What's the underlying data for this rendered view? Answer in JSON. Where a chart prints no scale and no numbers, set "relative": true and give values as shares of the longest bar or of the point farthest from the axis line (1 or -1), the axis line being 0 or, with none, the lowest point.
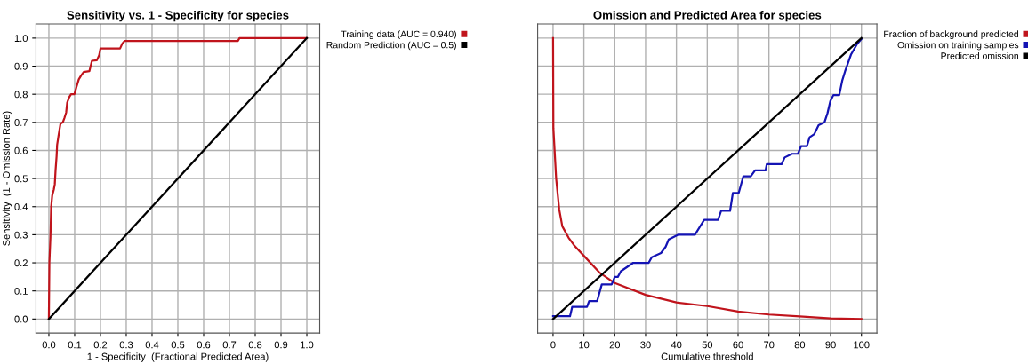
{
  "chart_data": [
    {
      "type": "line",
      "title": "Sensitivity vs. 1 - Specificity for species",
      "xlabel": "1 - Specificity  (Fractional Predicted Area)",
      "ylabel": "Sensitivity  (1 - Omission Rate)",
      "xlim": [
        -0.05,
        1.05
      ],
      "ylim": [
        -0.05,
        1.05
      ],
      "xticks": [
        {
          "value": 0,
          "label": "0.0"
        },
        0.1,
        0.2,
        0.3,
        0.4,
        0.5,
        0.6,
        0.7,
        0.8,
        0.9,
        {
          "value": 1,
          "label": "1.0"
        }
      ],
      "yticks": [
        {
          "value": 0,
          "label": "0.0"
        },
        0.1,
        0.2,
        0.3,
        0.4,
        0.5,
        0.6,
        0.7,
        0.8,
        0.9,
        {
          "value": 1,
          "label": "1.0"
        }
      ],
      "grid": true,
      "legend": "top right",
      "marker": "none",
      "line_style": "solid",
      "series": [
        {
          "name": "Training data (AUC = 0.940)",
          "color": "#c0141c",
          "x": [
            0,
            0.002,
            0.006,
            0.009,
            0.013,
            0.019,
            0.023,
            0.026,
            0.03,
            0.032,
            0.037,
            0.045,
            0.054,
            0.06,
            0.067,
            0.071,
            0.079,
            0.086,
            0.099,
            0.107,
            0.116,
            0.126,
            0.135,
            0.157,
            0.167,
            0.186,
            0.195,
            0.2,
            0.276,
            0.285,
            0.294,
            0.733,
            0.739,
            1.0
          ],
          "values": [
            0,
            0.2,
            0.29,
            0.4,
            0.44,
            0.46,
            0.48,
            0.53,
            0.58,
            0.62,
            0.65,
            0.695,
            0.7,
            0.715,
            0.735,
            0.77,
            0.79,
            0.8,
            0.8,
            0.826,
            0.853,
            0.868,
            0.879,
            0.882,
            0.919,
            0.921,
            0.939,
            0.963,
            0.963,
            0.981,
            0.99,
            0.99,
            1.0,
            1.0
          ]
        },
        {
          "name": "Random Prediction (AUC = 0.5)",
          "color": "#000000",
          "x": [
            0,
            1
          ],
          "values": [
            0,
            1
          ]
        }
      ]
    },
    {
      "type": "line",
      "title": "Omission and Predicted Area for species",
      "xlabel": "Cumulative threshold",
      "xlim": [
        -5,
        105
      ],
      "xticks": [
        0,
        10,
        20,
        30,
        40,
        50,
        60,
        70,
        80,
        90,
        100
      ],
      "relative": true,
      "grid": true,
      "legend": "top right",
      "marker": "none",
      "line_style": "solid",
      "series": [
        {
          "name": "Fraction of background predicted",
          "color": "#c0141c",
          "x": [
            0,
            0.1,
            0.6,
            1,
            2,
            3,
            5,
            7,
            10,
            15,
            20,
            30,
            40,
            50,
            60,
            70,
            80,
            90,
            100
          ],
          "values": [
            1.0,
            0.68,
            0.58,
            0.5,
            0.39,
            0.33,
            0.29,
            0.26,
            0.225,
            0.166,
            0.128,
            0.086,
            0.059,
            0.046,
            0.027,
            0.016,
            0.009,
            0.002,
            0
          ]
        },
        {
          "name": "Omission on training samples",
          "color": "#1414b4",
          "x": [
            0,
            5.5,
            6.2,
            11,
            11.7,
            14.3,
            15.8,
            19,
            20,
            21,
            22,
            26,
            31,
            32,
            35,
            36.5,
            37.5,
            40.5,
            46,
            49,
            53.5,
            54.5,
            57.4,
            58.3,
            60.2,
            61.7,
            64.1,
            65.5,
            68.9,
            69.3,
            74.1,
            75.1,
            77.5,
            79.4,
            80.4,
            82.3,
            83.2,
            84.7,
            86.1,
            88,
            89,
            89.9,
            90.9,
            92.8,
            93.8,
            94.7,
            96.6,
            98.6,
            100
          ],
          "values": [
            0.01,
            0.01,
            0.043,
            0.043,
            0.064,
            0.064,
            0.123,
            0.123,
            0.15,
            0.15,
            0.17,
            0.2,
            0.2,
            0.22,
            0.235,
            0.257,
            0.283,
            0.3,
            0.3,
            0.353,
            0.353,
            0.385,
            0.385,
            0.449,
            0.449,
            0.508,
            0.508,
            0.529,
            0.529,
            0.551,
            0.551,
            0.575,
            0.588,
            0.588,
            0.615,
            0.615,
            0.647,
            0.658,
            0.69,
            0.7,
            0.733,
            0.775,
            0.797,
            0.797,
            0.85,
            0.882,
            0.941,
            0.979,
            0.997
          ]
        },
        {
          "name": "Predicted omission",
          "color": "#000000",
          "x": [
            0,
            100
          ],
          "values": [
            0,
            1
          ]
        }
      ]
    }
  ]
}
